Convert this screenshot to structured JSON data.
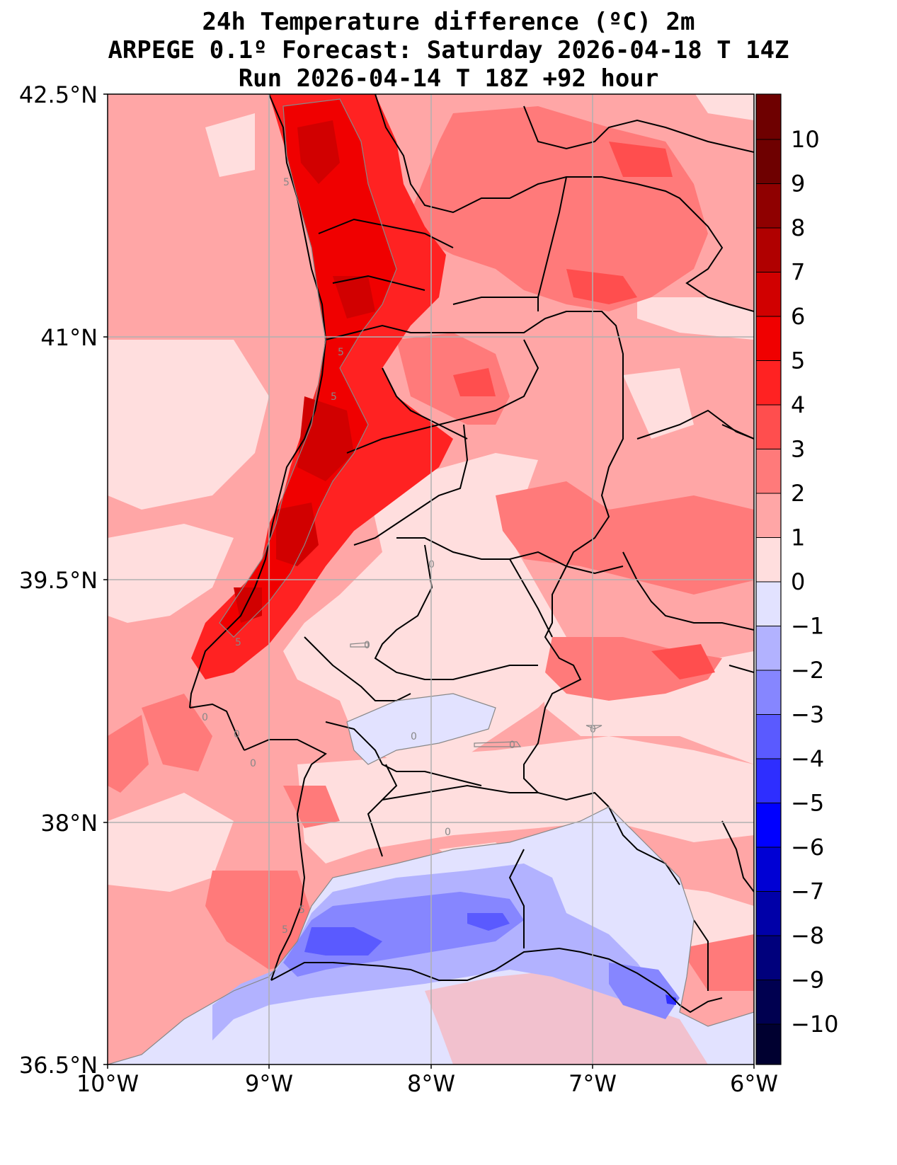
{
  "title": {
    "line1": "24h Temperature difference (ºC) 2m",
    "line2": "ARPEGE 0.1º Forecast: Saturday 2026-04-18 T 14Z",
    "line3": "Run 2026-04-14 T 18Z +92 hour"
  },
  "axes": {
    "lat_ticks": [
      "42.5°N",
      "41°N",
      "39.5°N",
      "38°N",
      "36.5°N"
    ],
    "lon_ticks": [
      "10°W",
      "9°W",
      "8°W",
      "7°W",
      "6°W"
    ]
  },
  "colorbar": {
    "labels": [
      "10",
      "9",
      "8",
      "7",
      "6",
      "5",
      "4",
      "3",
      "2",
      "1",
      "0",
      "−1",
      "−2",
      "−3",
      "−4",
      "−5",
      "−6",
      "−7",
      "−8",
      "−9",
      "−10"
    ],
    "colors": [
      "#6e0000",
      "#8f0000",
      "#b00000",
      "#d10000",
      "#f00000",
      "#ff2222",
      "#ff4e4e",
      "#ff7a7a",
      "#ffa6a6",
      "#ffdede",
      "#e2e2ff",
      "#b2b2ff",
      "#8686ff",
      "#5a5aff",
      "#2e2eff",
      "#0000ff",
      "#0000d4",
      "#0000a8",
      "#00007c",
      "#000050",
      "#000030"
    ]
  },
  "contour_labels": [
    "5",
    "5",
    "5",
    "5",
    "5",
    "0",
    "0",
    "0",
    "0",
    "0",
    "0",
    "0",
    "0",
    "0",
    "5"
  ]
}
